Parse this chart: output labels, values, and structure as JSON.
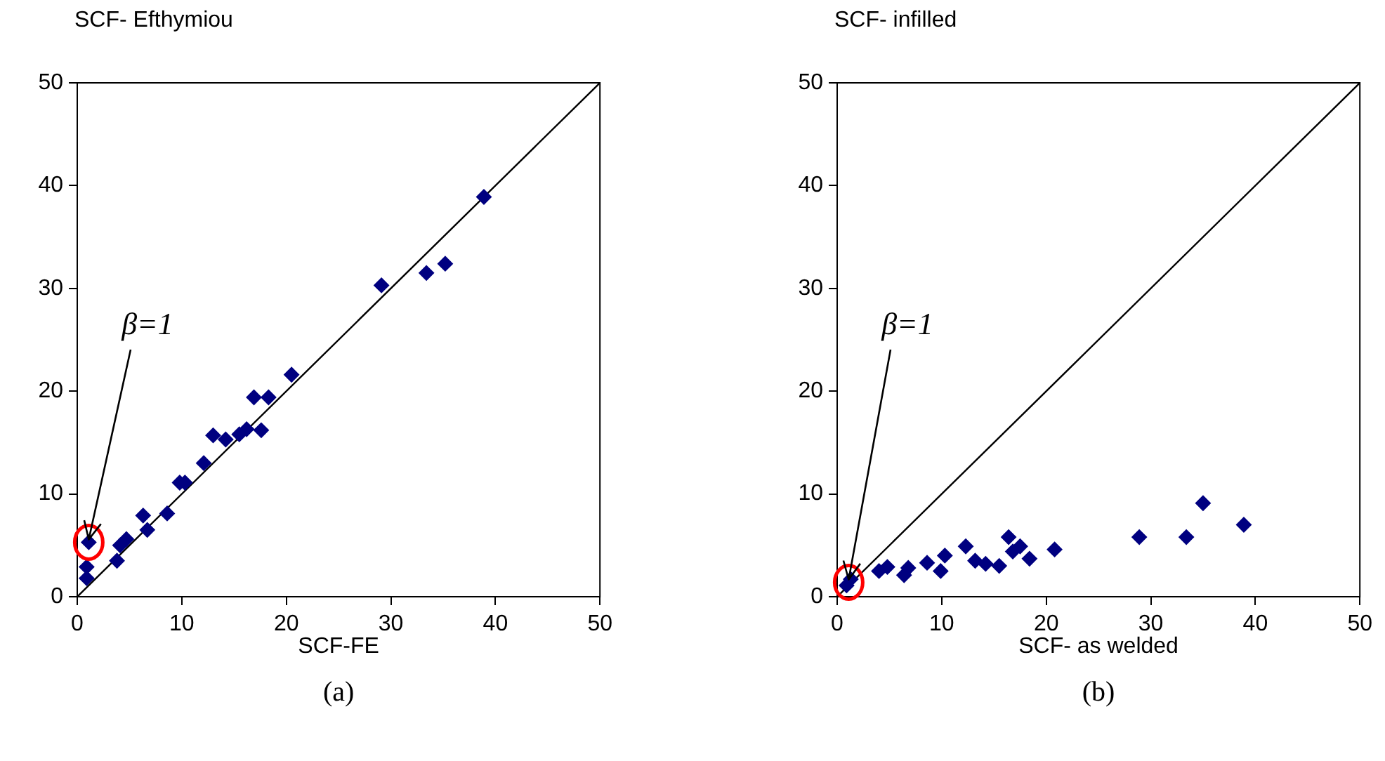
{
  "chart_data": [
    {
      "type": "scatter",
      "ylabel": "SCF- Efthymiou",
      "xlabel": "SCF-FE",
      "annotations": [
        "(a)",
        {
          "text": "β=1",
          "x": 1.1,
          "y": 5.3
        }
      ],
      "xlim": [
        0,
        50
      ],
      "ylim": [
        0,
        50
      ],
      "xticks": [
        0,
        10,
        20,
        30,
        40,
        50
      ],
      "yticks": [
        0,
        10,
        20,
        30,
        40,
        50
      ],
      "marker": "diamond",
      "legend": false,
      "series": [
        {
          "type": "scatter",
          "color": "#000080",
          "x": [
            38.9,
            29.1,
            33.4,
            35.2,
            20.5,
            16.9,
            18.3,
            17.6,
            16.2,
            15.5,
            13.0,
            14.2,
            12.1,
            9.8,
            10.3,
            8.6,
            6.3,
            6.7,
            4.7,
            4.1,
            3.8,
            1.1,
            0.9,
            0.9
          ],
          "values": [
            38.9,
            30.3,
            31.5,
            32.4,
            21.6,
            19.4,
            19.4,
            16.2,
            16.3,
            15.8,
            15.7,
            15.3,
            13.0,
            11.1,
            11.1,
            8.1,
            7.9,
            6.5,
            5.6,
            5.0,
            3.5,
            5.3,
            2.9,
            1.8
          ]
        },
        {
          "type": "line",
          "color": "#000000",
          "marker": "none",
          "x": [
            0,
            50
          ],
          "values": [
            0,
            50
          ]
        }
      ]
    },
    {
      "type": "scatter",
      "ylabel": "SCF- infilled",
      "xlabel": "SCF- as welded",
      "annotations": [
        "(b)",
        {
          "text": "β=1",
          "x": 1.1,
          "y": 1.4
        }
      ],
      "xlim": [
        0,
        50
      ],
      "ylim": [
        0,
        50
      ],
      "xticks": [
        0,
        10,
        20,
        30,
        40,
        50
      ],
      "yticks": [
        0,
        10,
        20,
        30,
        40,
        50
      ],
      "marker": "diamond",
      "legend": false,
      "series": [
        {
          "type": "scatter",
          "color": "#000080",
          "x": [
            0.9,
            1.3,
            4.0,
            4.8,
            6.4,
            6.8,
            8.6,
            9.9,
            10.3,
            12.3,
            13.2,
            14.2,
            15.5,
            16.4,
            16.8,
            17.5,
            18.4,
            20.8,
            28.9,
            33.4,
            35.0,
            38.9
          ],
          "values": [
            1.1,
            1.7,
            2.5,
            2.9,
            2.1,
            2.8,
            3.3,
            2.5,
            4.0,
            4.9,
            3.5,
            3.2,
            3.0,
            5.8,
            4.4,
            4.9,
            3.7,
            4.6,
            5.8,
            5.8,
            9.1,
            7.0
          ]
        },
        {
          "type": "line",
          "color": "#000000",
          "marker": "none",
          "x": [
            0,
            50
          ],
          "values": [
            0,
            50
          ]
        }
      ]
    }
  ]
}
